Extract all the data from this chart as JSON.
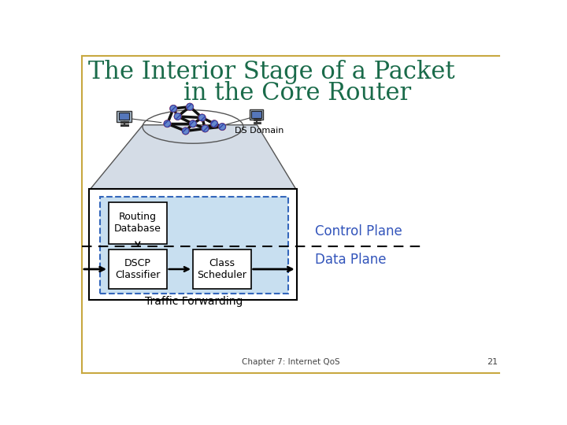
{
  "title_line1": "The Interior Stage of a Packet",
  "title_line2": "in the Core Router",
  "title_color": "#1a6b4a",
  "title_fontsize": 22,
  "ds_domain_label": "DS Domain",
  "routing_db_label": "Routing\nDatabase",
  "dscp_label": "DSCP\nClassifier",
  "class_sched_label": "Class\nScheduler",
  "traffic_fwd_label": "Traffic Forwarding",
  "control_plane_label": "Control Plane",
  "data_plane_label": "Data Plane",
  "control_data_color": "#3355bb",
  "bg_color": "#ffffff",
  "box_bg": "#c8dff0",
  "border_color": "#000000",
  "dashed_border_color": "#3366bb",
  "chapter_label": "Chapter 7: Internet QoS",
  "page_num": "21",
  "gold_border": "#c8a840",
  "gray_trap": "#d4dce6",
  "trap_edge": "#555555",
  "node_fill": "#6688cc",
  "node_edge": "#cc3333",
  "net_line": "#111111"
}
